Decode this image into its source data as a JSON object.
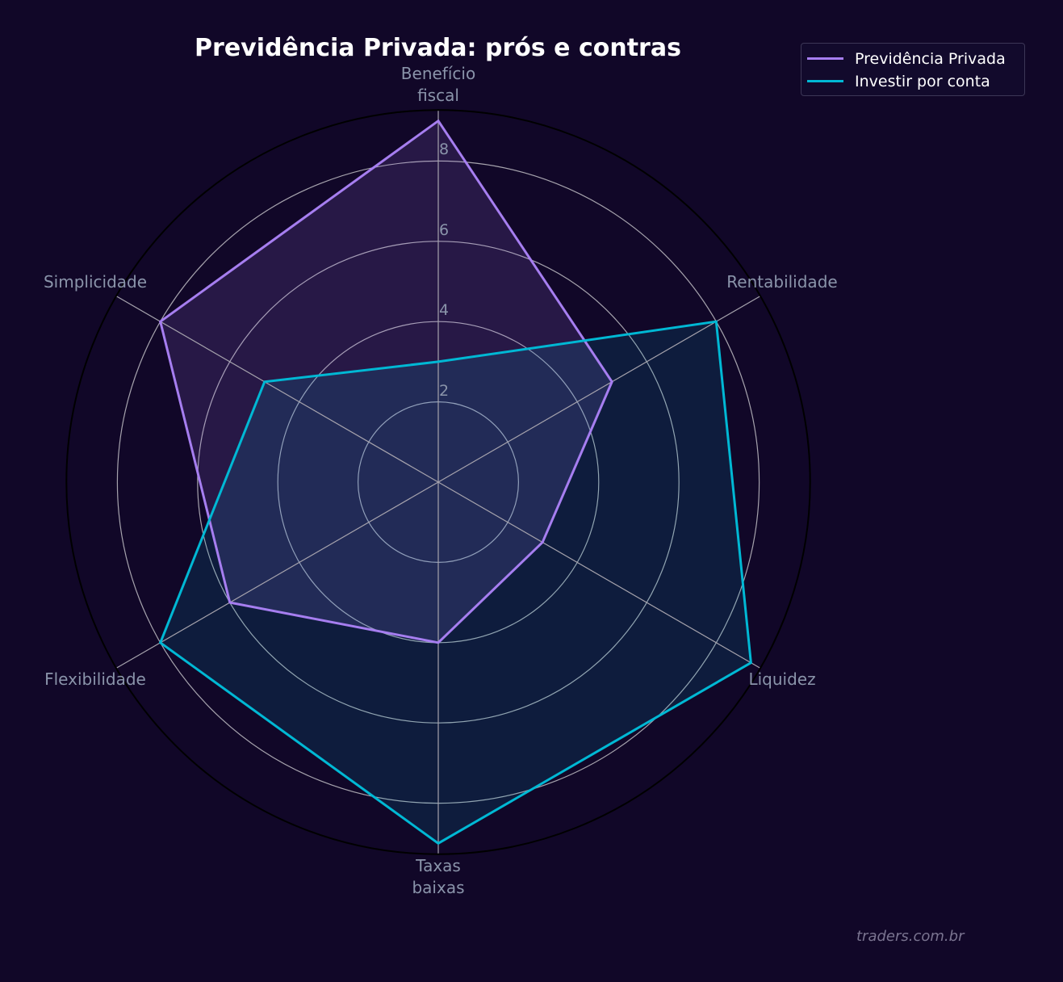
{
  "title": "Previdência Privada: prós e contras",
  "watermark": "traders.com.br",
  "legend": {
    "items": [
      {
        "label": "Previdência Privada",
        "color": "#a67ef0"
      },
      {
        "label": "Investir por conta",
        "color": "#00b8d4"
      }
    ]
  },
  "colors": {
    "background": "#110728",
    "grid": "#a6a3ad",
    "outer_ring": "#000000",
    "label": "#8a94aa"
  },
  "chart_data": {
    "type": "radar",
    "title": "Previdência Privada: prós e contras",
    "categories": [
      "Benefício\nfiscal",
      "Rentabilidade",
      "Liquidez",
      "Taxas\nbaixas",
      "Flexibilidade",
      "Simplicidade"
    ],
    "series": [
      {
        "name": "Previdência Privada",
        "values": [
          9,
          5,
          3,
          4,
          6,
          8
        ],
        "color": "#a67ef0",
        "fill": "#a67ef0",
        "fill_opacity": 0.15
      },
      {
        "name": "Investir por conta",
        "values": [
          3,
          8,
          9,
          9,
          8,
          5
        ],
        "color": "#00b8d4",
        "fill": "#00b8d4",
        "fill_opacity": 0.12
      }
    ],
    "rticks": [
      2,
      4,
      6,
      8
    ],
    "rlim": [
      0,
      9.27
    ],
    "grid": true,
    "legend_position": "upper right"
  }
}
